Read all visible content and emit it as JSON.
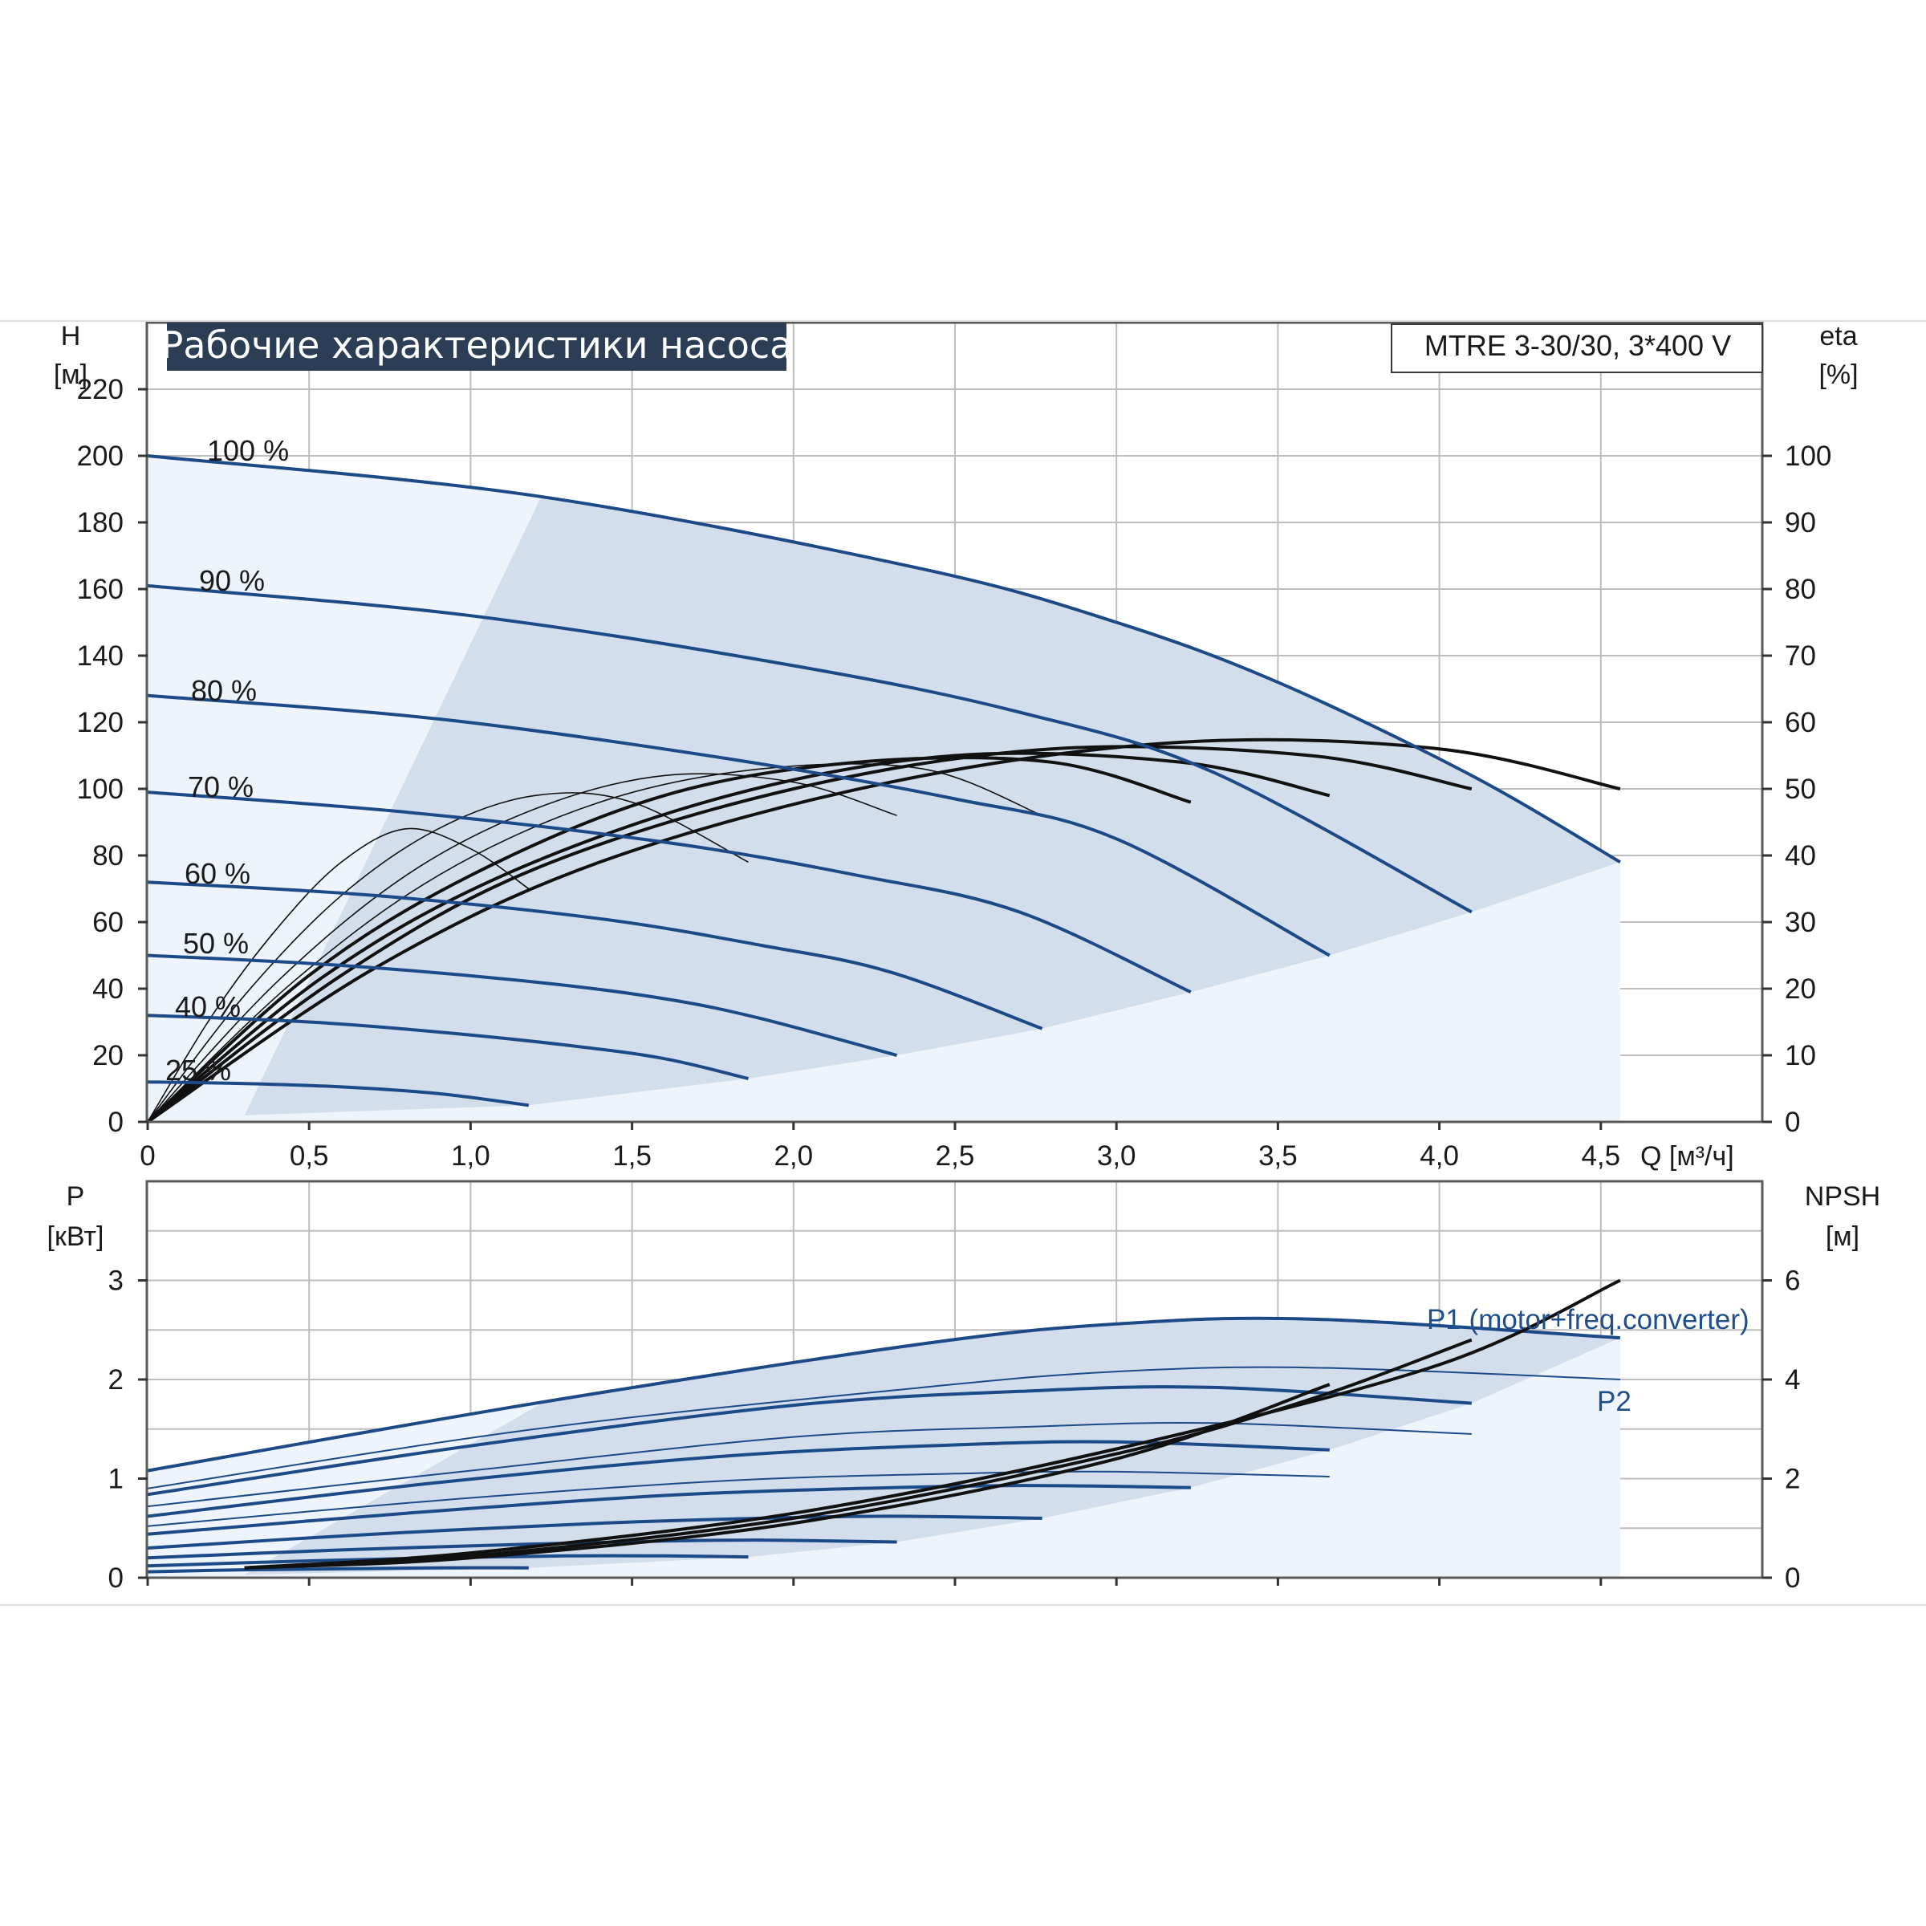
{
  "title": "Рабочие характеристики насоса",
  "model": "MTRE 3-30/30, 3*400 V",
  "colors": {
    "curve_blue": "#1c4a86",
    "area_fill": "#d2deec",
    "area_fill_light": "#edf4fb",
    "eta_black": "#111111",
    "grid": "#bdbdbd",
    "title_bg": "#2c3e55"
  },
  "chart_data": [
    {
      "type": "line",
      "panel": "top",
      "xlabel": "Q [м³/ч]",
      "ylabel_left": [
        "H",
        "[м]"
      ],
      "ylabel_right": [
        "eta",
        "[%]"
      ],
      "xlim": [
        0,
        5.0
      ],
      "ylim_left": [
        0,
        240
      ],
      "ylim_right": [
        0,
        120
      ],
      "x_ticks": [
        "0",
        "0,5",
        "1,0",
        "1,5",
        "2,0",
        "2,5",
        "3,0",
        "3,5",
        "4,0",
        "4,5"
      ],
      "y_ticks_left": [
        "0",
        "20",
        "40",
        "60",
        "80",
        "100",
        "120",
        "140",
        "160",
        "180",
        "200",
        "220"
      ],
      "y_ticks_right": [
        "0",
        "10",
        "20",
        "30",
        "40",
        "50",
        "60",
        "70",
        "80",
        "90",
        "100"
      ],
      "grid": true,
      "head_series": [
        {
          "name": "100 %",
          "x": [
            0,
            1.2,
            2.4,
            3.0,
            3.5,
            4.1,
            4.56
          ],
          "y": [
            200,
            188,
            166,
            150,
            132,
            104,
            78
          ]
        },
        {
          "name": "90 %",
          "x": [
            0,
            1.0,
            2.0,
            2.7,
            3.3,
            4.1
          ],
          "y": [
            161,
            152,
            137,
            123,
            105,
            63
          ]
        },
        {
          "name": "80 %",
          "x": [
            0,
            0.9,
            1.8,
            2.5,
            3.0,
            3.66
          ],
          "y": [
            128,
            121,
            109,
            97,
            85,
            50
          ]
        },
        {
          "name": "70 %",
          "x": [
            0,
            0.8,
            1.6,
            2.2,
            2.7,
            3.23
          ],
          "y": [
            99,
            93,
            84,
            74,
            63,
            39
          ]
        },
        {
          "name": "60 %",
          "x": [
            0,
            0.7,
            1.4,
            1.9,
            2.3,
            2.77
          ],
          "y": [
            72,
            68,
            61,
            53,
            45,
            28
          ]
        },
        {
          "name": "50 %",
          "x": [
            0,
            0.6,
            1.2,
            1.6,
            1.9,
            2.32
          ],
          "y": [
            50,
            47,
            42,
            37,
            31,
            20
          ]
        },
        {
          "name": "40 %",
          "x": [
            0,
            0.5,
            0.9,
            1.3,
            1.6,
            1.86
          ],
          "y": [
            32,
            30,
            27,
            23,
            19,
            13
          ]
        },
        {
          "name": "25 %",
          "x": [
            0,
            0.3,
            0.6,
            0.9,
            1.18
          ],
          "y": [
            12,
            11.5,
            10.5,
            8.5,
            5
          ]
        }
      ],
      "eta_series": [
        {
          "x": [
            0,
            0.2,
            0.4,
            0.6,
            0.8,
            1.0,
            1.18
          ],
          "y": [
            0,
            16,
            29,
            39,
            44,
            41,
            35
          ]
        },
        {
          "x": [
            0,
            0.3,
            0.6,
            0.9,
            1.2,
            1.5,
            1.86
          ],
          "y": [
            0,
            19,
            34,
            44,
            49,
            48,
            39
          ]
        },
        {
          "x": [
            0,
            0.4,
            0.8,
            1.2,
            1.6,
            2.0,
            2.32
          ],
          "y": [
            0,
            21,
            37,
            47,
            52,
            51,
            46
          ]
        },
        {
          "x": [
            0,
            0.45,
            0.9,
            1.4,
            1.9,
            2.4,
            2.77
          ],
          "y": [
            0,
            21,
            37,
            48,
            53,
            53,
            46
          ]
        },
        {
          "x": [
            0,
            0.5,
            1.0,
            1.6,
            2.2,
            2.8,
            3.23
          ],
          "y": [
            0,
            22,
            37,
            49,
            54,
            54,
            48
          ]
        },
        {
          "x": [
            0,
            0.55,
            1.1,
            1.8,
            2.5,
            3.2,
            3.66
          ],
          "y": [
            0,
            22,
            37,
            49,
            55,
            54,
            49
          ]
        },
        {
          "x": [
            0,
            0.6,
            1.2,
            2.0,
            2.8,
            3.6,
            4.1
          ],
          "y": [
            0,
            22,
            38,
            50,
            56,
            55,
            50
          ]
        },
        {
          "x": [
            0,
            0.7,
            1.4,
            2.3,
            3.2,
            4.0,
            4.56
          ],
          "y": [
            0,
            23,
            39,
            51,
            57,
            56,
            50
          ]
        }
      ],
      "speed_labels": [
        "100 %",
        "90 %",
        "80 %",
        "70 %",
        "60 %",
        "50 %",
        "40 %",
        "25 %"
      ]
    },
    {
      "type": "line",
      "panel": "bottom",
      "ylabel_left": [
        "P",
        "[кВт]"
      ],
      "ylabel_right": [
        "NPSH",
        "[м]"
      ],
      "xlim": [
        0,
        5.0
      ],
      "ylim_left": [
        0,
        4
      ],
      "ylim_right": [
        0,
        8
      ],
      "y_ticks_left": [
        "0",
        "1",
        "2",
        "3"
      ],
      "y_ticks_right": [
        "0",
        "2",
        "4",
        "6"
      ],
      "grid": true,
      "p1_label": "P1 (motor+freq.converter)",
      "p2_label": "P2",
      "p1_series": [
        {
          "x": [
            0,
            1.2,
            2.4,
            3.0,
            3.6,
            4.56
          ],
          "y": [
            1.08,
            1.76,
            2.36,
            2.56,
            2.61,
            2.42
          ]
        },
        {
          "x": [
            0,
            1.0,
            2.0,
            2.7,
            3.3,
            4.1
          ],
          "y": [
            0.84,
            1.33,
            1.74,
            1.88,
            1.92,
            1.76
          ]
        },
        {
          "x": [
            0,
            0.9,
            1.8,
            2.5,
            3.0,
            3.66
          ],
          "y": [
            0.62,
            0.96,
            1.23,
            1.34,
            1.37,
            1.29
          ]
        },
        {
          "x": [
            0,
            0.8,
            1.6,
            2.2,
            2.7,
            3.23
          ],
          "y": [
            0.44,
            0.65,
            0.83,
            0.9,
            0.93,
            0.91
          ]
        },
        {
          "x": [
            0,
            0.7,
            1.4,
            1.9,
            2.3,
            2.77
          ],
          "y": [
            0.3,
            0.44,
            0.55,
            0.6,
            0.62,
            0.6
          ]
        },
        {
          "x": [
            0,
            0.6,
            1.2,
            1.6,
            1.9,
            2.32
          ],
          "y": [
            0.2,
            0.28,
            0.34,
            0.37,
            0.38,
            0.36
          ]
        },
        {
          "x": [
            0,
            0.5,
            0.9,
            1.3,
            1.6,
            1.86
          ],
          "y": [
            0.12,
            0.17,
            0.2,
            0.22,
            0.22,
            0.21
          ]
        },
        {
          "x": [
            0,
            0.3,
            0.6,
            0.9,
            1.18
          ],
          "y": [
            0.06,
            0.08,
            0.09,
            0.1,
            0.1
          ]
        }
      ],
      "p2_series": [
        {
          "x": [
            0,
            1.2,
            2.4,
            3.0,
            3.6,
            4.56
          ],
          "y": [
            0.9,
            1.5,
            1.92,
            2.08,
            2.12,
            2.0
          ]
        },
        {
          "x": [
            0,
            1.0,
            2.0,
            2.7,
            3.3,
            4.1
          ],
          "y": [
            0.72,
            1.08,
            1.42,
            1.52,
            1.56,
            1.45
          ]
        },
        {
          "x": [
            0,
            0.9,
            1.8,
            2.5,
            3.0,
            3.66
          ],
          "y": [
            0.52,
            0.78,
            0.98,
            1.05,
            1.07,
            1.02
          ]
        }
      ],
      "npsh_series": [
        {
          "x": [
            0.3,
            1.0,
            2.0,
            3.0,
            3.66
          ],
          "y": [
            0.1,
            0.2,
            0.55,
            1.2,
            1.95
          ]
        },
        {
          "x": [
            0.3,
            1.0,
            2.0,
            3.0,
            3.6,
            4.1
          ],
          "y": [
            0.1,
            0.22,
            0.6,
            1.25,
            1.8,
            2.4
          ]
        },
        {
          "x": [
            0.3,
            1.0,
            2.0,
            3.0,
            4.0,
            4.56
          ],
          "y": [
            0.1,
            0.25,
            0.65,
            1.3,
            2.15,
            3.0
          ]
        }
      ]
    }
  ]
}
